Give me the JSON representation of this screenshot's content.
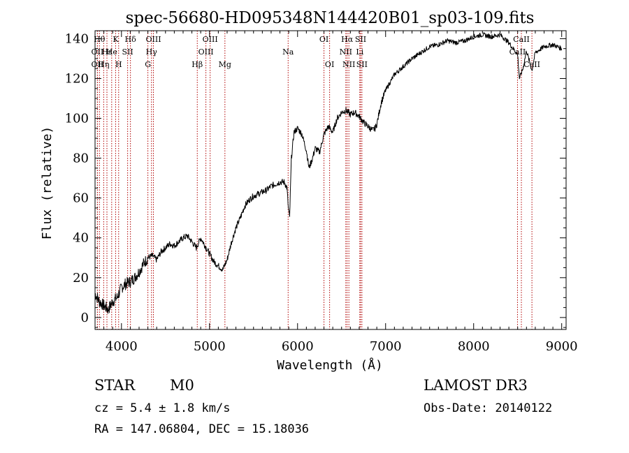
{
  "chart_data": {
    "type": "line",
    "title": "spec-56680-HD095348N144420B01_sp03-109.fits",
    "xlabel": "Wavelength (Å)",
    "ylabel": "Flux (relative)",
    "xlim": [
      3700,
      9050
    ],
    "ylim": [
      -6,
      144
    ],
    "xticks": [
      4000,
      5000,
      6000,
      7000,
      8000,
      9000
    ],
    "yticks": [
      0,
      20,
      40,
      60,
      80,
      100,
      120,
      140
    ],
    "series": [
      {
        "name": "spectrum",
        "x": [
          3700,
          3750,
          3800,
          3850,
          3900,
          3950,
          4000,
          4050,
          4100,
          4150,
          4200,
          4250,
          4300,
          4350,
          4400,
          4450,
          4500,
          4550,
          4600,
          4650,
          4700,
          4750,
          4800,
          4850,
          4900,
          4950,
          5000,
          5050,
          5100,
          5150,
          5200,
          5250,
          5300,
          5350,
          5400,
          5450,
          5500,
          5550,
          5600,
          5650,
          5700,
          5750,
          5800,
          5850,
          5880,
          5895,
          5910,
          5930,
          5960,
          6000,
          6050,
          6100,
          6130,
          6170,
          6200,
          6250,
          6300,
          6350,
          6400,
          6450,
          6500,
          6550,
          6600,
          6650,
          6700,
          6750,
          6800,
          6850,
          6880,
          6900,
          6950,
          7000,
          7050,
          7100,
          7150,
          7200,
          7300,
          7400,
          7500,
          7600,
          7700,
          7800,
          7900,
          8000,
          8100,
          8200,
          8300,
          8400,
          8500,
          8520,
          8560,
          8600,
          8662,
          8700,
          8800,
          8900,
          9000
        ],
        "y": [
          12,
          8,
          6,
          4,
          8,
          10,
          15,
          17,
          18,
          20,
          23,
          27,
          30,
          31,
          29,
          33,
          35,
          37,
          36,
          38,
          40,
          41,
          38,
          35,
          40,
          36,
          32,
          28,
          26,
          24,
          29,
          38,
          45,
          50,
          56,
          59,
          61,
          62,
          63,
          64,
          66,
          67,
          68,
          68,
          65,
          55,
          50,
          80,
          93,
          95,
          92,
          84,
          75,
          80,
          85,
          83,
          92,
          96,
          93,
          100,
          103,
          104,
          102,
          103,
          101,
          98,
          96,
          94,
          95,
          97,
          108,
          114,
          118,
          122,
          124,
          126,
          130,
          133,
          136,
          137,
          139,
          138,
          139,
          141,
          142,
          141,
          142,
          138,
          132,
          120,
          125,
          134,
          124,
          133,
          136,
          137,
          135
        ]
      }
    ],
    "line_markers": [
      {
        "wl": 3750,
        "label": "Hθ",
        "row": 1
      },
      {
        "wl": 3727,
        "label": "OII",
        "row": 2
      },
      {
        "wl": 3727,
        "label": "OII",
        "row": 3
      },
      {
        "wl": 3798,
        "label": "Hη",
        "row": 3
      },
      {
        "wl": 3835,
        "label": "Hε",
        "row": 2
      },
      {
        "wl": 3889,
        "label": "He",
        "row": 2
      },
      {
        "wl": 3934,
        "label": "K",
        "row": 1
      },
      {
        "wl": 3968,
        "label": "H",
        "row": 3
      },
      {
        "wl": 4070,
        "label": "SII",
        "row": 2
      },
      {
        "wl": 4102,
        "label": "Hδ",
        "row": 1
      },
      {
        "wl": 4300,
        "label": "G",
        "row": 3
      },
      {
        "wl": 4341,
        "label": "Hγ",
        "row": 2
      },
      {
        "wl": 4363,
        "label": "OIII",
        "row": 1
      },
      {
        "wl": 4861,
        "label": "Hβ",
        "row": 3
      },
      {
        "wl": 4959,
        "label": "OIII",
        "row": 2
      },
      {
        "wl": 5007,
        "label": "OIII",
        "row": 1
      },
      {
        "wl": 5175,
        "label": "Mg",
        "row": 3
      },
      {
        "wl": 5893,
        "label": "Na",
        "row": 2
      },
      {
        "wl": 6300,
        "label": "OI",
        "row": 1
      },
      {
        "wl": 6364,
        "label": "OI",
        "row": 3
      },
      {
        "wl": 6548,
        "label": "NII",
        "row": 2
      },
      {
        "wl": 6563,
        "label": "Hα",
        "row": 1
      },
      {
        "wl": 6583,
        "label": "NII",
        "row": 3
      },
      {
        "wl": 6707,
        "label": "Li",
        "row": 2
      },
      {
        "wl": 6716,
        "label": "SII",
        "row": 1
      },
      {
        "wl": 6731,
        "label": "SII",
        "row": 3
      },
      {
        "wl": 8498,
        "label": "CaII",
        "row": 2
      },
      {
        "wl": 8542,
        "label": "CaII",
        "row": 1
      },
      {
        "wl": 8662,
        "label": "CaII",
        "row": 3
      }
    ]
  },
  "info": {
    "class": "STAR",
    "subclass": "M0",
    "cz": "cz = 5.4 ± 1.8 km/s",
    "coords": "RA = 147.06804, DEC =  15.18036",
    "survey": "LAMOST DR3",
    "obs_date": "Obs-Date: 20140122"
  }
}
